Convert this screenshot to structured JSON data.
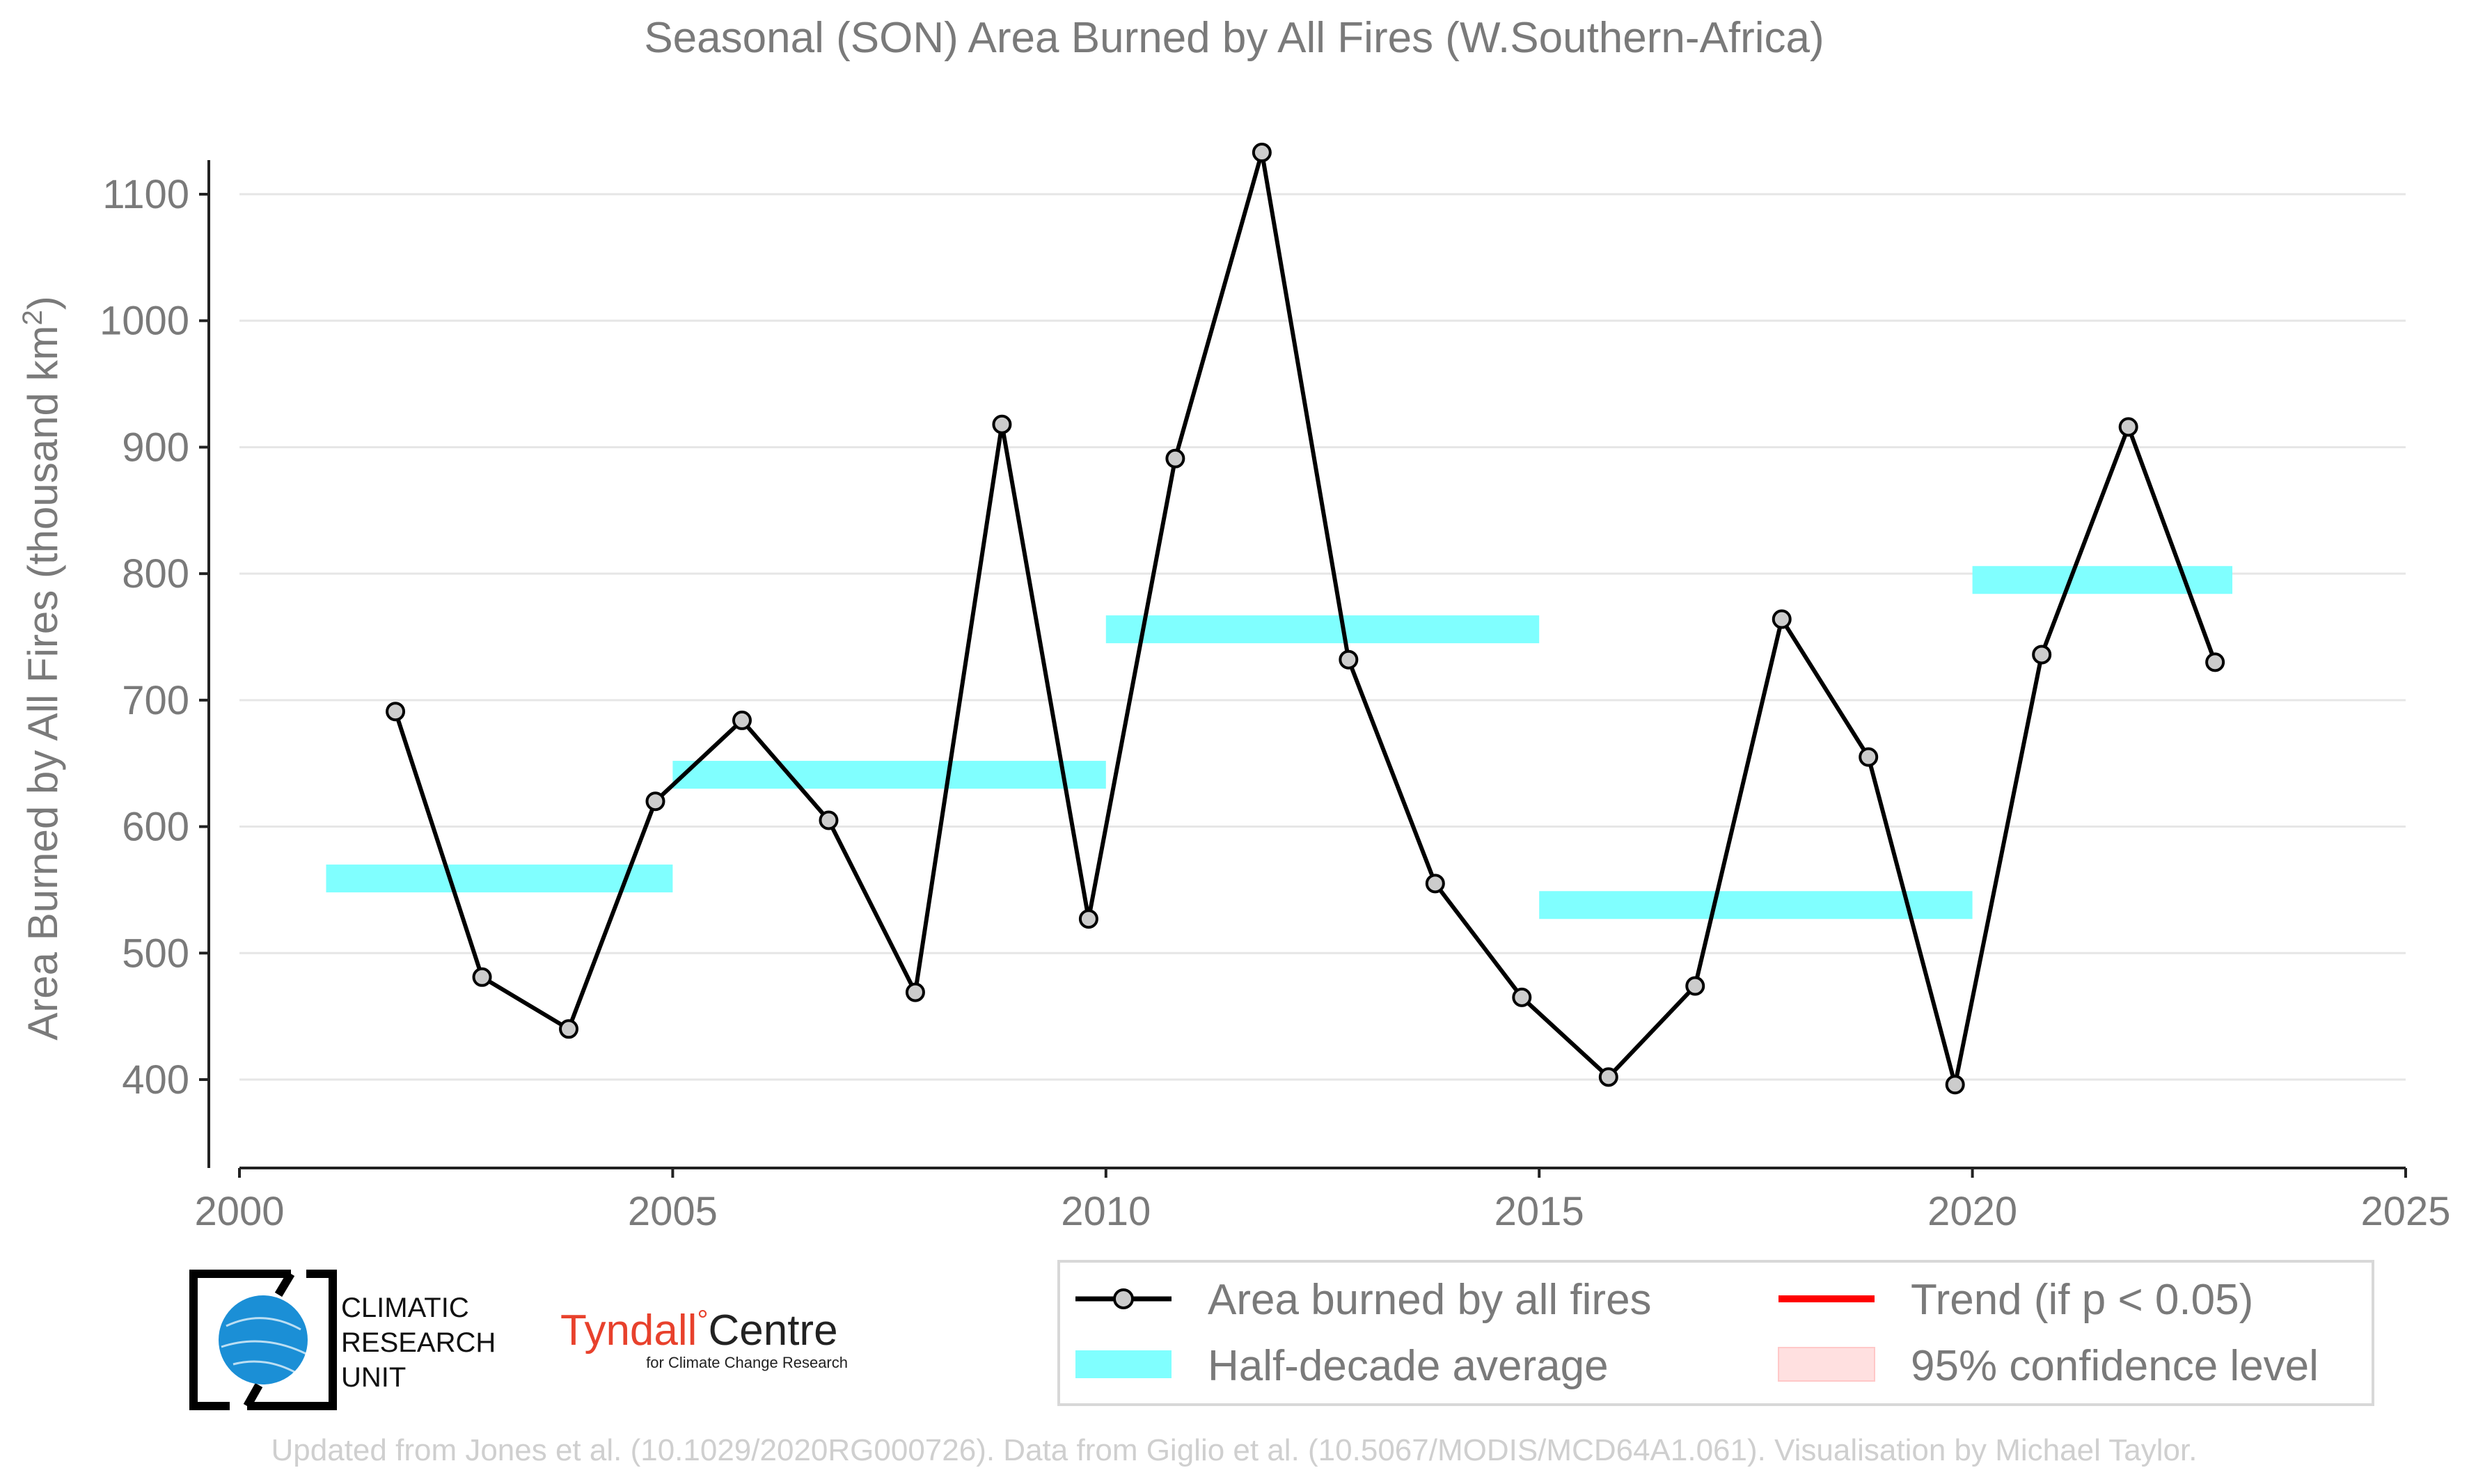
{
  "chart_data": {
    "type": "line",
    "title": "Seasonal (SON) Area Burned by All Fires (W.Southern-Africa)",
    "ylabel": "Area Burned by All Fires (thousand km",
    "ylabel_sup": "2",
    "ylabel_close": ")",
    "xlim": [
      2000,
      2025
    ],
    "ylim": [
      340,
      1160
    ],
    "xticks": [
      2000,
      2005,
      2010,
      2015,
      2020,
      2025
    ],
    "yticks": [
      400,
      500,
      600,
      700,
      800,
      900,
      1000,
      1100
    ],
    "grid": "horizontal",
    "series": [
      {
        "name": "Area burned by all fires",
        "x": [
          2001.8,
          2002.8,
          2003.8,
          2004.8,
          2005.8,
          2006.8,
          2007.8,
          2008.8,
          2009.8,
          2010.8,
          2011.8,
          2012.8,
          2013.8,
          2014.8,
          2015.8,
          2016.8,
          2017.8,
          2018.8,
          2019.8,
          2020.8,
          2021.8,
          2022.8
        ],
        "y": [
          691,
          481,
          440,
          620,
          684,
          605,
          469,
          918,
          527,
          891,
          1133,
          732,
          555,
          465,
          402,
          474,
          764,
          655,
          396,
          736,
          916,
          730
        ],
        "color": "#000000",
        "marker_fill": "#cccccc"
      }
    ],
    "half_decade_average": {
      "name": "Half-decade average",
      "color": "#80ffff",
      "segments": [
        {
          "x0": 2001,
          "x1": 2005,
          "y": 559
        },
        {
          "x0": 2005,
          "x1": 2010,
          "y": 641
        },
        {
          "x0": 2010,
          "x1": 2015,
          "y": 756
        },
        {
          "x0": 2015,
          "x1": 2020,
          "y": 538
        },
        {
          "x0": 2020,
          "x1": 2023,
          "y": 795
        }
      ]
    },
    "legend": {
      "placement": "bottom-right",
      "entries": [
        {
          "label": "Area burned by all fires",
          "kind": "line-marker",
          "color": "#000000"
        },
        {
          "label": "Trend (if p < 0.05)",
          "kind": "line",
          "color": "#ff0000"
        },
        {
          "label": "Half-decade average",
          "kind": "band",
          "color": "#80ffff"
        },
        {
          "label": "95% confidence level",
          "kind": "band",
          "color": "#ffe0e0"
        }
      ]
    },
    "footer": "Updated from Jones et al. (10.1029/2020RG000726). Data from Giglio et al. (10.5067/MODIS/MCD64A1.061). Visualisation by Michael Taylor."
  },
  "logos": {
    "cru": [
      "CLIMATIC",
      "RESEARCH",
      "UNIT"
    ],
    "tyndall_main": "Tyndall",
    "tyndall_degree": "°",
    "tyndall_centre": "Centre",
    "tyndall_sub": "for Climate Change Research"
  }
}
